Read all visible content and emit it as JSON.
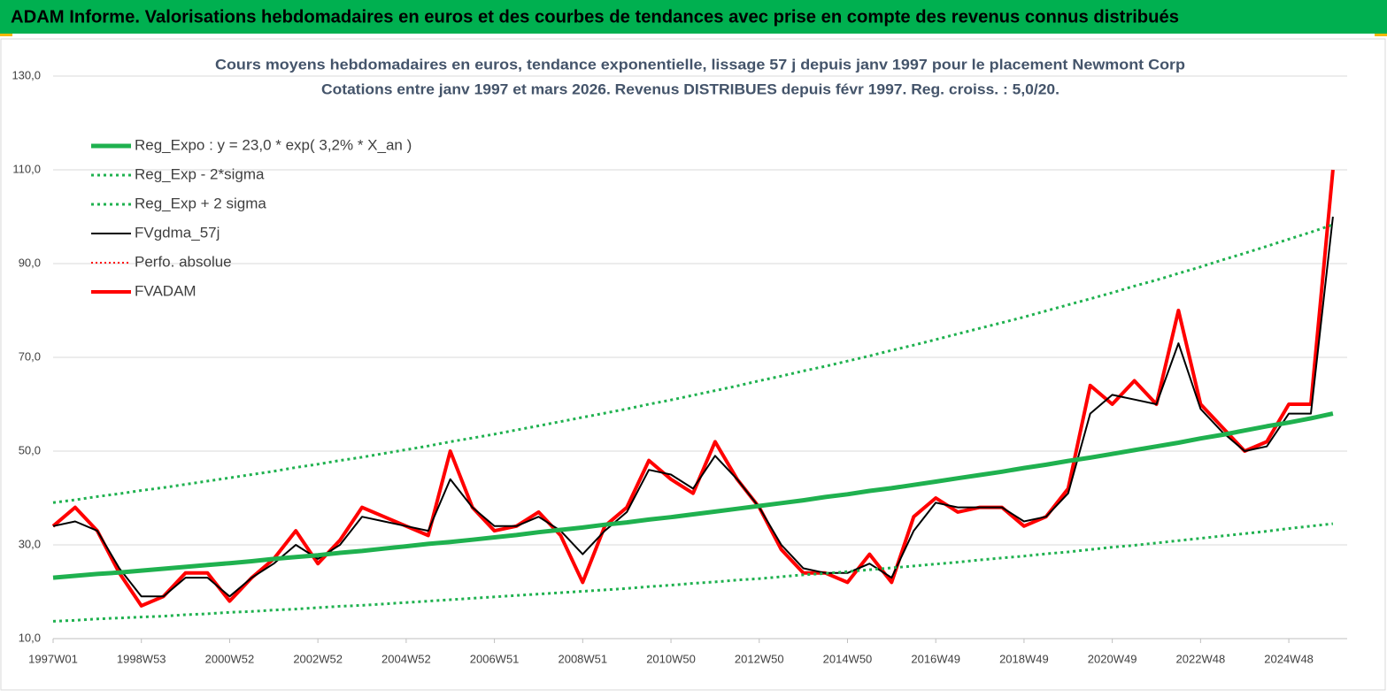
{
  "header": {
    "title": "ADAM Informe. Valorisations hebdomadaires en euros et des courbes de tendances avec prise en compte des revenus connus distribués"
  },
  "chart_data": {
    "type": "line",
    "title": "Cours moyens hebdomadaires en euros, tendance exponentielle, lissage 57 j depuis janv 1997 pour le placement Newmont Corp",
    "subtitle": "Cotations entre janv 1997 et mars 2026. Revenus DISTRIBUES depuis févr 1997. Reg. croiss. : 5,0/20.",
    "categories": [
      "1997W01",
      null,
      null,
      null,
      "1998W53",
      null,
      null,
      null,
      "2000W52",
      null,
      null,
      null,
      "2002W52",
      null,
      null,
      null,
      "2004W52",
      null,
      null,
      null,
      "2006W51",
      null,
      null,
      null,
      "2008W51",
      null,
      null,
      null,
      "2010W50",
      null,
      null,
      null,
      "2012W50",
      null,
      null,
      null,
      "2014W50",
      null,
      null,
      null,
      "2016W49",
      null,
      null,
      null,
      "2018W49",
      null,
      null,
      null,
      "2020W49",
      null,
      null,
      null,
      "2022W48",
      null,
      null,
      null,
      "2024W48",
      null,
      null
    ],
    "ylim": [
      10,
      130
    ],
    "yticks": [
      {
        "value": 10,
        "label": "10,0"
      },
      {
        "value": 30,
        "label": "30,0"
      },
      {
        "value": 50,
        "label": "50,0"
      },
      {
        "value": 70,
        "label": "70,0"
      },
      {
        "value": 90,
        "label": "90,0"
      },
      {
        "value": 110,
        "label": "110,0"
      },
      {
        "value": 130,
        "label": "130,0"
      }
    ],
    "grid": true,
    "legend": "top-left",
    "series": [
      {
        "name": "Reg_Expo : y = 23,0 * exp( 3,2% *  X_an )",
        "color": "#1fb14f",
        "style": "solid",
        "width": 5,
        "values": [
          23.0,
          23.4,
          23.8,
          24.1,
          24.5,
          24.9,
          25.3,
          25.7,
          26.1,
          26.5,
          27.0,
          27.4,
          27.8,
          28.3,
          28.7,
          29.2,
          29.7,
          30.2,
          30.6,
          31.1,
          31.6,
          32.1,
          32.7,
          33.2,
          33.7,
          34.3,
          34.8,
          35.4,
          35.9,
          36.5,
          37.1,
          37.7,
          38.3,
          38.9,
          39.5,
          40.2,
          40.8,
          41.5,
          42.1,
          42.8,
          43.5,
          44.2,
          44.9,
          45.6,
          46.4,
          47.1,
          47.9,
          48.6,
          49.4,
          50.2,
          51.0,
          51.8,
          52.7,
          53.5,
          54.4,
          55.3,
          56.1,
          57.0,
          58.0
        ]
      },
      {
        "name": "Reg_Exp - 2*sigma",
        "color": "#1fb14f",
        "style": "dotted",
        "width": 3,
        "values": [
          13.7,
          13.9,
          14.2,
          14.4,
          14.6,
          14.8,
          15.1,
          15.3,
          15.6,
          15.8,
          16.1,
          16.3,
          16.6,
          16.9,
          17.1,
          17.4,
          17.7,
          18.0,
          18.3,
          18.6,
          18.9,
          19.2,
          19.5,
          19.8,
          20.1,
          20.4,
          20.7,
          21.1,
          21.4,
          21.8,
          22.1,
          22.5,
          22.8,
          23.2,
          23.6,
          23.9,
          24.3,
          24.7,
          25.1,
          25.5,
          25.9,
          26.3,
          26.8,
          27.2,
          27.6,
          28.1,
          28.5,
          29.0,
          29.5,
          29.9,
          30.4,
          30.9,
          31.4,
          31.9,
          32.4,
          32.9,
          33.5,
          34.0,
          34.5
        ]
      },
      {
        "name": "Reg_Exp + 2 sigma",
        "color": "#1fb14f",
        "style": "dotted",
        "width": 3,
        "values": [
          39.0,
          39.6,
          40.3,
          40.9,
          41.6,
          42.2,
          42.9,
          43.6,
          44.3,
          45.0,
          45.7,
          46.5,
          47.2,
          48.0,
          48.7,
          49.5,
          50.3,
          51.1,
          52.0,
          52.8,
          53.6,
          54.5,
          55.4,
          56.3,
          57.2,
          58.1,
          59.0,
          60.0,
          60.9,
          61.9,
          62.9,
          63.9,
          65.0,
          66.0,
          67.1,
          68.1,
          69.2,
          70.3,
          71.5,
          72.6,
          73.8,
          75.0,
          76.2,
          77.4,
          78.6,
          79.9,
          81.2,
          82.5,
          83.8,
          85.2,
          86.5,
          87.9,
          89.3,
          90.8,
          92.2,
          93.7,
          95.2,
          96.7,
          98.3
        ]
      },
      {
        "name": "FVgdma_57j",
        "color": "#000000",
        "style": "solid",
        "width": 2,
        "values": [
          34,
          35,
          33,
          25,
          19,
          19,
          23,
          23,
          19,
          23,
          26,
          30,
          27,
          30,
          36,
          35,
          34,
          33,
          44,
          38,
          34,
          34,
          36,
          33,
          28,
          33,
          37,
          46,
          45,
          42,
          49,
          44,
          38,
          30,
          25,
          24,
          24,
          26,
          23,
          33,
          39,
          38,
          38,
          38,
          35,
          36,
          41,
          58,
          62,
          61,
          60,
          73,
          59,
          54,
          50,
          51,
          58,
          58,
          100
        ]
      },
      {
        "name": "Perfo. absolue",
        "color": "#ff0000",
        "style": "dotted",
        "width": 2,
        "values": [
          34,
          38,
          33,
          24,
          17,
          19,
          24,
          24,
          18,
          23,
          27,
          33,
          26,
          31,
          38,
          36,
          34,
          32,
          50,
          38,
          33,
          34,
          37,
          32,
          22,
          34,
          38,
          48,
          44,
          41,
          52,
          44,
          38,
          29,
          24,
          24,
          22,
          28,
          22,
          36,
          40,
          37,
          38,
          38,
          34,
          36,
          42,
          64,
          60,
          65,
          60,
          80,
          60,
          55,
          50,
          52,
          60,
          60,
          110
        ]
      },
      {
        "name": "FVADAM",
        "color": "#ff0000",
        "style": "solid",
        "width": 4,
        "values": [
          34,
          38,
          33,
          24,
          17,
          19,
          24,
          24,
          18,
          23,
          27,
          33,
          26,
          31,
          38,
          36,
          34,
          32,
          50,
          38,
          33,
          34,
          37,
          32,
          22,
          34,
          38,
          48,
          44,
          41,
          52,
          44,
          38,
          29,
          24,
          24,
          22,
          28,
          22,
          36,
          40,
          37,
          38,
          38,
          34,
          36,
          42,
          64,
          60,
          65,
          60,
          80,
          60,
          55,
          50,
          52,
          60,
          60,
          110
        ]
      }
    ]
  }
}
